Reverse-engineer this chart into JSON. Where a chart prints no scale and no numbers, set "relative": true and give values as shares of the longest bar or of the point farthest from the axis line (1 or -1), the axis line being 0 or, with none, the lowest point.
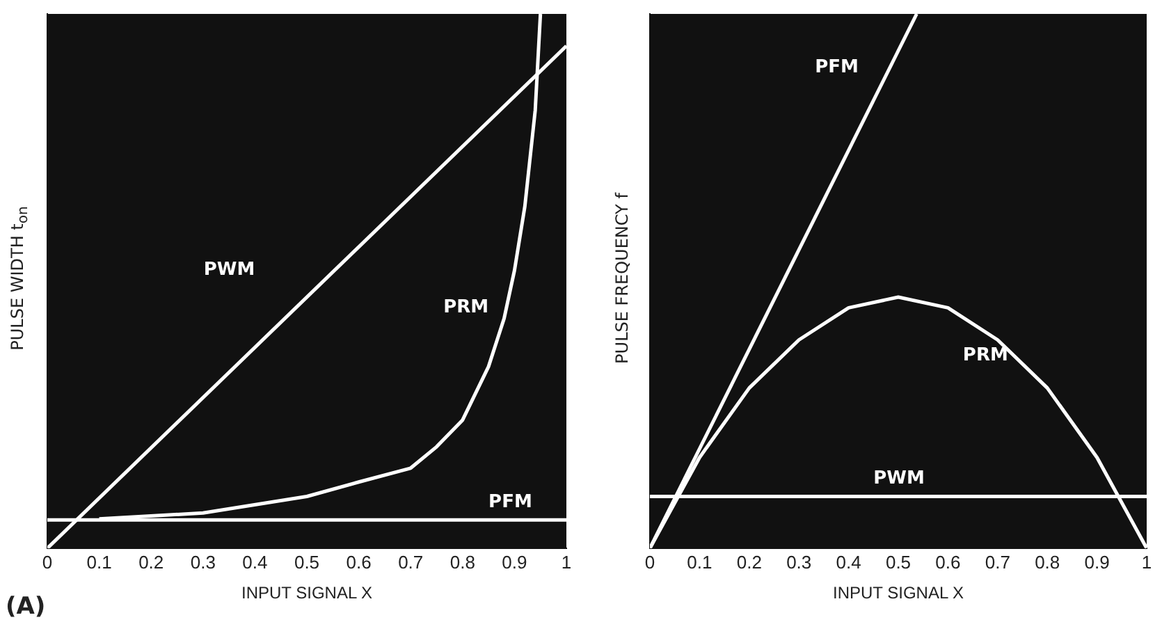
{
  "chart_data": [
    {
      "type": "line",
      "relative": true,
      "xlabel": "INPUT SIGNAL X",
      "ylabel": "PULSE WIDTH t$_{on}$",
      "annotations": [
        "(A)"
      ],
      "xlim": [
        0,
        1
      ],
      "xticks": [
        0,
        0.1,
        0.2,
        0.3,
        0.4,
        0.5,
        0.6,
        0.7,
        0.8,
        0.9,
        1
      ],
      "grid": false,
      "legend": false,
      "marker": "none",
      "series": [
        {
          "name": "PWM",
          "color": "#ffffff",
          "x": [
            0,
            1
          ],
          "values": [
            0,
            0.94
          ]
        },
        {
          "name": "PRM",
          "color": "#ffffff",
          "x": [
            0.1,
            0.3,
            0.5,
            0.6,
            0.7,
            0.75,
            0.8,
            0.85,
            0.88,
            0.9,
            0.92,
            0.94,
            0.95
          ],
          "values": [
            0.055,
            0.066,
            0.097,
            0.124,
            0.15,
            0.19,
            0.24,
            0.34,
            0.43,
            0.52,
            0.64,
            0.82,
            1
          ]
        },
        {
          "name": "PFM",
          "color": "#ffffff",
          "x": [
            0,
            1
          ],
          "values": [
            0.053,
            0.053
          ]
        }
      ]
    },
    {
      "type": "line",
      "relative": true,
      "xlabel": "INPUT SIGNAL X",
      "ylabel": "PULSE FREQUENCY f",
      "xlim": [
        0,
        1
      ],
      "xticks": [
        0,
        0.1,
        0.2,
        0.3,
        0.4,
        0.5,
        0.6,
        0.7,
        0.8,
        0.9,
        1
      ],
      "grid": false,
      "legend": false,
      "marker": "none",
      "series": [
        {
          "name": "PFM",
          "color": "#ffffff",
          "x": [
            0,
            0.537
          ],
          "values": [
            0,
            1
          ]
        },
        {
          "name": "PRM",
          "color": "#ffffff",
          "x": [
            0,
            0.1,
            0.2,
            0.3,
            0.4,
            0.5,
            0.6,
            0.7,
            0.8,
            0.9,
            1
          ],
          "values": [
            0,
            0.17,
            0.3,
            0.39,
            0.45,
            0.47,
            0.45,
            0.39,
            0.3,
            0.17,
            0
          ]
        },
        {
          "name": "PWM",
          "color": "#ffffff",
          "x": [
            0,
            1
          ],
          "values": [
            0.097,
            0.097
          ]
        }
      ]
    }
  ]
}
